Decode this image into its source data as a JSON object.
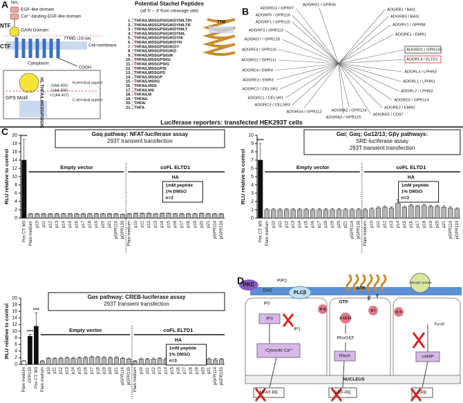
{
  "figure_title": "Luciferase reporters: transfected HEK293T cells",
  "panel_a": {
    "label": "A",
    "nh2": "NH₂",
    "domains": [
      "EGF-like domain",
      "Ca²⁺-binding EGF-like domain"
    ],
    "ntf": "NTF",
    "ctf": "CTF",
    "gain": "GAIN Domain",
    "tmd": "7TMD",
    "tmd_size": "(230 AA)",
    "membrane": "Cell membrane",
    "cytoplasm": "Cytoplasm",
    "cooh": "COOH",
    "gps": "GPS Motif",
    "hl": "HL",
    "motif_seq": "THFAILMSSGPSIGIK",
    "sites": [
      "-2(AA 405)",
      "-1(AA 406)",
      "+1(AA 407)"
    ],
    "n_aspect": "N-terminal aspect",
    "c_aspect": "C-terminal aspect",
    "peptide_title": "Potential Stachel Peptides",
    "peptide_subtitle": "(all 5' – 3' from cleavage site)",
    "tm_label": "7TM",
    "peptides": [
      {
        "num": "1.",
        "seq": "THFAILMSSGPSIGIKDYNILTRI"
      },
      {
        "num": "2.",
        "seq": "THFAILMSSGPSIGIKDYNILTR"
      },
      {
        "num": "3.",
        "seq": "THFAILMSSGPSIGIKDYNILT"
      },
      {
        "num": "4.",
        "seq": "THFAILMSSGPSIGIKDYNIL"
      },
      {
        "num": "5.",
        "seq": "THFAILMSSGPSIGIKDYNI"
      },
      {
        "num": "6.",
        "seq": "THFAILMSSGPSIGIKDYN"
      },
      {
        "num": "7.",
        "seq": "THFAILMSSGPSIGIKDY"
      },
      {
        "num": "8.",
        "seq": "THFAILMSSGPSIGIKD"
      },
      {
        "num": "9.",
        "seq": "THFAILMSSGPSIGIK"
      },
      {
        "num": "10.",
        "seq": "THFAILMSSGPSIGI"
      },
      {
        "num": "11.",
        "seq": "THFAILMSSGPSIG"
      },
      {
        "num": "12.",
        "seq": "THFAILMSSGPSI"
      },
      {
        "num": "13.",
        "seq": "THFAILMSSGPS"
      },
      {
        "num": "14.",
        "seq": "THFAILMSSGP"
      },
      {
        "num": "15.",
        "seq": "THFAILMSSG"
      },
      {
        "num": "16.",
        "seq": "THFAILMSS"
      },
      {
        "num": "17.",
        "seq": "THFAILMS"
      },
      {
        "num": "18.",
        "seq": "THFAILM"
      },
      {
        "num": "19.",
        "seq": "THFAIL"
      },
      {
        "num": "20.",
        "seq": "THFAI"
      },
      {
        "num": "21.",
        "seq": "THFA"
      }
    ]
  },
  "panel_b": {
    "label": "B",
    "leaves": [
      "ADGRG1 / GPR56",
      "ADGRB1 / BAI1",
      "ADGRB3 / BAI3",
      "ADGRV1 / GPR98",
      "ADGRE1 / EMR1",
      "ADGRD1 / GPR133",
      "ADGRL4 / ELTD1",
      "ADGRL3 / LPHN3",
      "ADGRL1 / LPHN1",
      "ADGRL2 / LPHN2",
      "ADGRD2 / GPR114",
      "ADGRE2 / EMR2",
      "ADGRE5 / CD97",
      "ADGRA2 / GPR124",
      "ADGRA3 / GPR125",
      "ADGRG4 / GPR112",
      "ADGRC3 / CELSR3",
      "ADGRC1 / CELSR1",
      "ADGRC2 / CELSR2",
      "ADGRE3 / EMR3",
      "ADGRE4 / EMR4",
      "ADGRG2 / GPR111",
      "ADGRF4 / GPR115",
      "ADGRG7 / GPR128",
      "ADGRF3 / GPR113",
      "ADGRF1 / GPR110",
      "ADGRF5 / GPR116",
      "ADGRG3 / GPR97"
    ]
  },
  "panel_c": {
    "label": "C",
    "charts": [
      {
        "type": "bar",
        "title": [
          "Gαq pathway: NFAT-luciferase assay",
          "293T transient transfection"
        ],
        "ylabel": "RLU relative to control",
        "ylim": [
          0,
          20
        ],
        "yticks": [
          0,
          2,
          4,
          6,
          8,
          10,
          12,
          14,
          16,
          18,
          20
        ],
        "categories": [
          "Pos CT: M3",
          "Plain medium",
          "p10",
          "p11",
          "p12",
          "p13",
          "p14",
          "p15",
          "p16",
          "p17",
          "p18",
          "p19",
          "p20",
          "p21",
          "pGPR114",
          "pGPR133",
          "Plain medium",
          "p10",
          "p11",
          "p12",
          "p13",
          "p14",
          "p15",
          "p16",
          "p17",
          "p18",
          "p19",
          "p20",
          "p21",
          "pGPR114",
          "pGPR133"
        ],
        "values": [
          14,
          1,
          1,
          1,
          1,
          1,
          1,
          1,
          1,
          1,
          1,
          1,
          1,
          1,
          1,
          0.9,
          1,
          1.1,
          1.1,
          1.1,
          1,
          1.1,
          1.1,
          1,
          1,
          1,
          1,
          1.1,
          1,
          1,
          1
        ],
        "errors": [
          5,
          0.1,
          0.1,
          0.1,
          0.1,
          0.1,
          0.1,
          0.1,
          0.1,
          0.1,
          0.1,
          0.1,
          0.1,
          0.1,
          0.1,
          0.1,
          0.1,
          0.1,
          0.1,
          0.1,
          0.1,
          0.1,
          0.1,
          0.1,
          0.1,
          0.1,
          0.1,
          0.1,
          0.1,
          0.1,
          0.1
        ],
        "colors": [
          "#111111",
          "#b5b5b5",
          "#b5b5b5",
          "#b5b5b5",
          "#b5b5b5",
          "#b5b5b5",
          "#b5b5b5",
          "#b5b5b5",
          "#b5b5b5",
          "#b5b5b5",
          "#b5b5b5",
          "#b5b5b5",
          "#b5b5b5",
          "#b5b5b5",
          "#b5b5b5",
          "#b5b5b5",
          "#b5b5b5",
          "#b5b5b5",
          "#b5b5b5",
          "#b5b5b5",
          "#b5b5b5",
          "#b5b5b5",
          "#b5b5b5",
          "#b5b5b5",
          "#b5b5b5",
          "#b5b5b5",
          "#b5b5b5",
          "#b5b5b5",
          "#b5b5b5",
          "#b5b5b5",
          "#b5b5b5"
        ],
        "significance": [
          "****",
          null,
          null,
          null,
          null,
          null,
          null,
          null,
          null,
          null,
          null,
          null,
          null,
          null,
          null,
          null,
          null,
          null,
          null,
          null,
          null,
          null,
          null,
          null,
          null,
          null,
          null,
          null,
          null,
          null,
          null
        ],
        "empty_vector": "Empty vector",
        "cofl": "coFL ELTD1",
        "ha": "HA",
        "note": [
          "1mM peptide",
          "1% DMSO",
          "n=3"
        ]
      },
      {
        "type": "bar",
        "title": [
          "Gαi; Gαq; Gα12/13; Gβγ pathways:",
          "SRE-luciferase assay",
          "293T transient transfection"
        ],
        "ylabel": "RLU relative to control",
        "ylim": [
          0,
          10
        ],
        "yticks": [
          0,
          1,
          2,
          3,
          4,
          5,
          6,
          7,
          8,
          9,
          10
        ],
        "categories": [
          "Pos CT: M3",
          "Plain medium",
          "p10",
          "p11",
          "p12",
          "p13",
          "p14",
          "p15",
          "p16",
          "p17",
          "p18",
          "p19",
          "p20",
          "p21",
          "pGPR114",
          "pGPR133",
          "Plain medium",
          "p10",
          "p11",
          "p12",
          "p13",
          "p14",
          "p15",
          "p16",
          "p17",
          "p18",
          "p19",
          "p20",
          "p21",
          "pGPR114",
          "pGPR133"
        ],
        "values": [
          7,
          1,
          1,
          1,
          1,
          1,
          1,
          1,
          1,
          1,
          1,
          1,
          1,
          1,
          1,
          1,
          1,
          1.1,
          1.2,
          1.3,
          1.2,
          1.8,
          1.3,
          1.5,
          1.4,
          1.5,
          1.4,
          1.4,
          1.3,
          1.2,
          1.1
        ],
        "errors": [
          2,
          0.15,
          0.15,
          0.15,
          0.15,
          0.15,
          0.15,
          0.15,
          0.15,
          0.15,
          0.15,
          0.15,
          0.15,
          0.15,
          0.15,
          0.15,
          0.15,
          0.15,
          0.15,
          0.15,
          0.15,
          0.4,
          0.15,
          0.15,
          0.15,
          0.15,
          0.15,
          0.15,
          0.15,
          0.15,
          0.15
        ],
        "colors": [
          "#111111",
          "#b5b5b5",
          "#b5b5b5",
          "#b5b5b5",
          "#b5b5b5",
          "#b5b5b5",
          "#b5b5b5",
          "#b5b5b5",
          "#b5b5b5",
          "#b5b5b5",
          "#b5b5b5",
          "#b5b5b5",
          "#b5b5b5",
          "#b5b5b5",
          "#b5b5b5",
          "#b5b5b5",
          "#b5b5b5",
          "#b5b5b5",
          "#b5b5b5",
          "#b5b5b5",
          "#b5b5b5",
          "#b5b5b5",
          "#b5b5b5",
          "#b5b5b5",
          "#b5b5b5",
          "#b5b5b5",
          "#b5b5b5",
          "#b5b5b5",
          "#b5b5b5",
          "#b5b5b5",
          "#b5b5b5"
        ],
        "significance": [
          "****",
          null,
          null,
          null,
          null,
          null,
          null,
          null,
          null,
          null,
          null,
          null,
          null,
          null,
          null,
          null,
          null,
          null,
          null,
          null,
          null,
          null,
          null,
          null,
          null,
          null,
          null,
          null,
          null,
          null,
          null
        ],
        "empty_vector": "Empty vector",
        "cofl": "coFL ELTD1",
        "ha": "HA",
        "note": [
          "1mM peptide",
          "1% DMSO",
          "n=3"
        ]
      },
      {
        "type": "bar",
        "title": [
          "Gαs pathway: CREB-luciferase assay",
          "293T transient transfection"
        ],
        "ylabel": "RLU relative to control",
        "ylim": [
          0,
          20
        ],
        "yticks": [
          0,
          2,
          4,
          6,
          8,
          10,
          12,
          14,
          16,
          18,
          20
        ],
        "categories": [
          "Plain medium",
          "GPR133",
          "Pos CT: M3",
          "Plain medium",
          "p10",
          "p11",
          "p12",
          "p13",
          "p14",
          "p15",
          "p16",
          "p17",
          "p18",
          "p19",
          "p20",
          "p21",
          "pGPR114",
          "pGPR133",
          "Plain medium",
          "p10",
          "p11",
          "p12",
          "p13",
          "p14",
          "p15",
          "p16",
          "p17",
          "p18",
          "p19",
          "p20",
          "p21",
          "pGPR114",
          "pGPR133"
        ],
        "values": [
          1,
          8.5,
          11.5,
          1,
          1.8,
          1.7,
          1.8,
          1.9,
          1.8,
          1.9,
          2,
          2.2,
          2.1,
          2,
          1.9,
          2,
          1.8,
          1.6,
          1,
          1.6,
          1.5,
          1.6,
          1.7,
          1.5,
          1.6,
          1.5,
          1.6,
          1.5,
          1.6,
          1.5,
          1.6,
          1.4,
          1.5
        ],
        "errors": [
          0.1,
          0.5,
          4,
          0.1,
          0.3,
          0.3,
          0.3,
          0.3,
          0.3,
          0.3,
          0.3,
          0.3,
          0.3,
          0.3,
          0.3,
          0.3,
          0.3,
          0.3,
          0.1,
          0.3,
          0.3,
          0.3,
          0.3,
          0.3,
          0.3,
          0.3,
          0.3,
          0.3,
          0.3,
          0.3,
          0.3,
          0.3,
          0.3
        ],
        "colors": [
          "#ffffff",
          "#111111",
          "#111111",
          "#b5b5b5",
          "#b5b5b5",
          "#b5b5b5",
          "#b5b5b5",
          "#b5b5b5",
          "#b5b5b5",
          "#b5b5b5",
          "#b5b5b5",
          "#b5b5b5",
          "#b5b5b5",
          "#b5b5b5",
          "#b5b5b5",
          "#b5b5b5",
          "#b5b5b5",
          "#b5b5b5",
          "#b5b5b5",
          "#b5b5b5",
          "#b5b5b5",
          "#b5b5b5",
          "#b5b5b5",
          "#b5b5b5",
          "#b5b5b5",
          "#b5b5b5",
          "#b5b5b5",
          "#b5b5b5",
          "#b5b5b5",
          "#b5b5b5",
          "#b5b5b5",
          "#b5b5b5",
          "#b5b5b5"
        ],
        "significance": [
          null,
          "****",
          "****",
          null,
          null,
          null,
          null,
          null,
          null,
          null,
          null,
          null,
          null,
          null,
          null,
          null,
          null,
          null,
          null,
          null,
          null,
          null,
          null,
          null,
          null,
          null,
          null,
          null,
          null,
          null,
          null,
          null,
          null
        ],
        "empty_vector": "Empty vector",
        "cofl": "coFL ELTD1",
        "ha": "HA",
        "note": [
          "1mM peptide",
          "1% DMSO",
          "n=3"
        ]
      }
    ]
  },
  "panel_d": {
    "label": "D",
    "pkc": "PKC",
    "dag": "DAG",
    "pip2": "PIP2",
    "ip3_small": "IP3",
    "plc": "PLCβ",
    "gtp_top": "GTP",
    "beta": "β",
    "gamma": "γ",
    "gtp_mid": "GTP",
    "adenylyl": "Adenylyl cyclase",
    "ip3_box": "IP3",
    "ip1": "IP1",
    "alpha_q": "α q",
    "alpha_1213": "α 12/13",
    "alpha_i": "α i",
    "alpha_s": "α s",
    "ca": "↑Cytosolic Ca²⁺",
    "rhogef": "RhoGEF",
    "rhoa": "RhoA",
    "pyrop": "PyroP",
    "camp": "cAMP",
    "nucleus": "NUCLEUS",
    "nfat": "NFAT-RE",
    "srf": "SRF-RE",
    "cre": "CRE"
  }
}
